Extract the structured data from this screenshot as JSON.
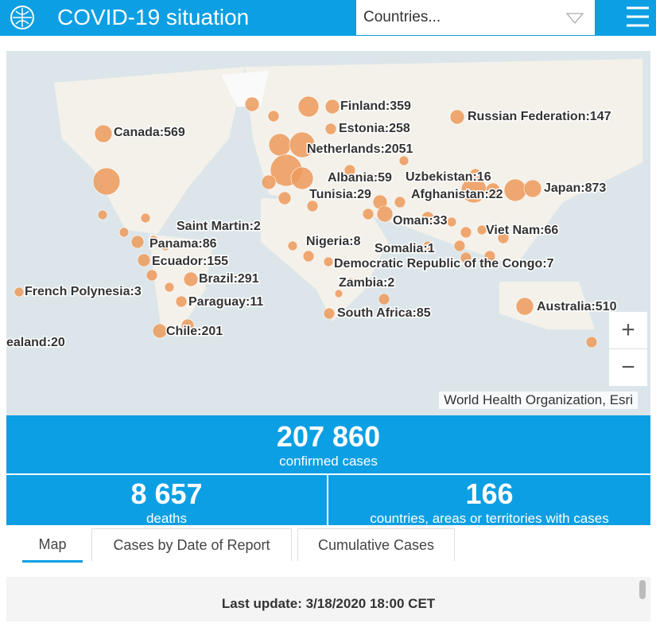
{
  "header": {
    "title": "COVID-19 situation",
    "dropdown": "Countries..."
  },
  "map": {
    "labels": [
      "Finland:359",
      "Estonia:258",
      "Netherlands:2051",
      "Albania:59",
      "Uzbekistan:16",
      "Tunisia:29",
      "Afghanistan:22",
      "Japan:873",
      "Russian Federation:147",
      "Canada:569",
      "Saint Martin:2",
      "Panama:86",
      "Ecuador:155",
      "Nigeria:8",
      "Somalia:1",
      "Viet Nam:66",
      "Oman:33",
      "Democratic Republic of the Congo:7",
      "Zambia:2",
      "Brazil:291",
      "French Polynesia:3",
      "Paraguay:11",
      "South Africa:85",
      "Australia:510",
      "Chile:201",
      "ealand:20"
    ],
    "zoom_in": "+",
    "zoom_out": "−",
    "attribution": "World Health Organization, Esri"
  },
  "stats": {
    "confirmed": {
      "value": "207 860",
      "label": "confirmed cases"
    },
    "deaths": {
      "value": "8 657",
      "label": "deaths"
    },
    "countries": {
      "value": "166",
      "label": "countries, areas or territories with cases"
    }
  },
  "tabs": [
    "Map",
    "Cases by Date of Report",
    "Cumulative Cases"
  ],
  "footer": {
    "last_update": "Last update: 3/18/2020 18:00 CET"
  }
}
